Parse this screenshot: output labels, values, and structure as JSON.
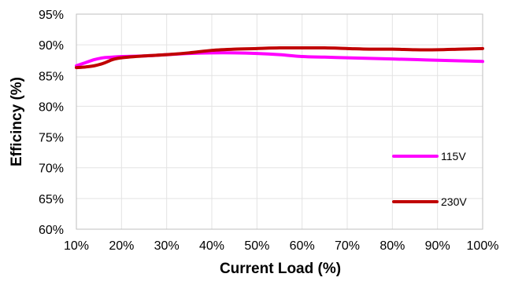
{
  "chart_data": {
    "type": "line",
    "title": "",
    "xlabel": "Current Load (%)",
    "ylabel": "Efficincy (%)",
    "x_tick_labels": [
      "10%",
      "20%",
      "30%",
      "40%",
      "50%",
      "60%",
      "70%",
      "80%",
      "90%",
      "100%"
    ],
    "y_tick_labels": [
      "60%",
      "65%",
      "70%",
      "75%",
      "80%",
      "85%",
      "90%",
      "95%"
    ],
    "xlim": [
      10,
      100
    ],
    "ylim": [
      60,
      95
    ],
    "grid": true,
    "legend_position": "right",
    "series": [
      {
        "name": "115V",
        "color": "#ff00ff",
        "x": [
          10,
          12,
          14,
          16,
          18,
          20,
          25,
          30,
          35,
          40,
          45,
          50,
          55,
          60,
          65,
          70,
          75,
          80,
          85,
          90,
          95,
          100
        ],
        "y": [
          86.6,
          87.1,
          87.6,
          87.9,
          88.0,
          88.1,
          88.2,
          88.4,
          88.6,
          88.7,
          88.7,
          88.6,
          88.4,
          88.1,
          88.0,
          87.9,
          87.8,
          87.7,
          87.6,
          87.5,
          87.4,
          87.3
        ]
      },
      {
        "name": "230V",
        "color": "#c00000",
        "x": [
          10,
          12,
          14,
          16,
          18,
          20,
          25,
          30,
          35,
          40,
          45,
          50,
          55,
          60,
          65,
          70,
          75,
          80,
          85,
          90,
          95,
          100
        ],
        "y": [
          86.3,
          86.4,
          86.6,
          87.0,
          87.6,
          87.9,
          88.2,
          88.4,
          88.7,
          89.1,
          89.3,
          89.4,
          89.5,
          89.5,
          89.5,
          89.4,
          89.3,
          89.3,
          89.2,
          89.2,
          89.3,
          89.4
        ]
      }
    ]
  }
}
